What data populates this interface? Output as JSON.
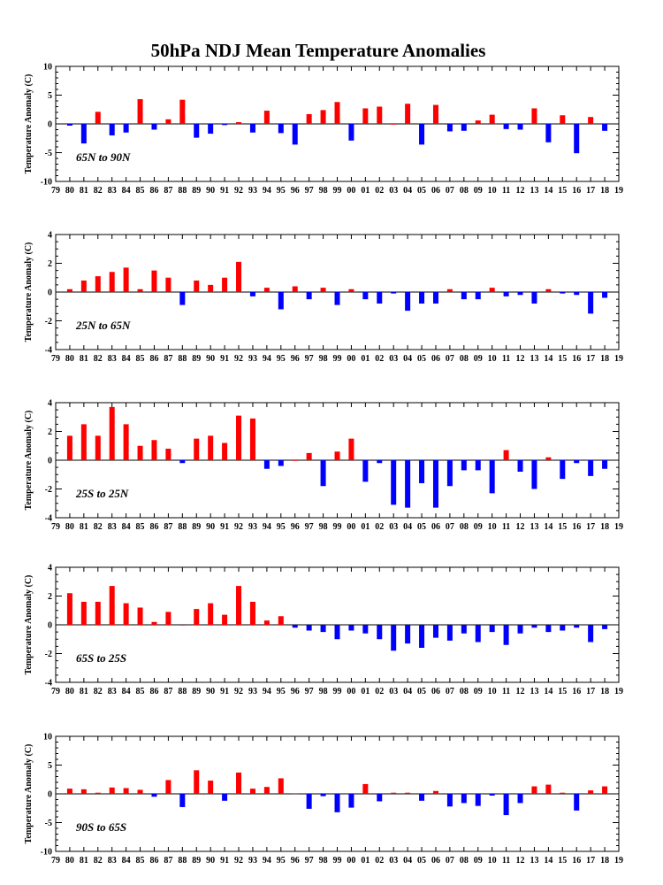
{
  "title": "50hPa NDJ Mean Temperature Anomalies",
  "colors": {
    "positive": "#ff0000",
    "negative": "#0000ff",
    "axis": "#000000"
  },
  "chart_data": [
    {
      "type": "bar",
      "region_label": "65N to 90N",
      "ylabel": "Temperature Anomaly (C)",
      "ylim": [
        -10,
        10
      ],
      "yticks": [
        -10,
        -5,
        0,
        5,
        10
      ],
      "xlim": [
        79,
        19
      ],
      "x_tick_labels": [
        "79",
        "80",
        "81",
        "82",
        "83",
        "84",
        "85",
        "86",
        "87",
        "88",
        "89",
        "90",
        "91",
        "92",
        "93",
        "94",
        "95",
        "96",
        "97",
        "98",
        "99",
        "00",
        "01",
        "02",
        "03",
        "04",
        "05",
        "06",
        "07",
        "08",
        "09",
        "10",
        "11",
        "12",
        "13",
        "14",
        "15",
        "16",
        "17",
        "18",
        "19"
      ],
      "categories": [
        "80",
        "81",
        "82",
        "83",
        "84",
        "85",
        "86",
        "87",
        "88",
        "89",
        "90",
        "91",
        "92",
        "93",
        "94",
        "95",
        "96",
        "97",
        "98",
        "99",
        "00",
        "01",
        "02",
        "03",
        "04",
        "05",
        "06",
        "07",
        "08",
        "09",
        "10",
        "11",
        "12",
        "13",
        "14",
        "15",
        "16",
        "17",
        "18"
      ],
      "values": [
        -0.3,
        -3.4,
        2.1,
        -2.0,
        -1.5,
        4.3,
        -1.0,
        0.8,
        4.2,
        -2.4,
        -1.7,
        -0.2,
        0.3,
        -1.5,
        2.3,
        -1.6,
        -3.6,
        1.7,
        2.4,
        3.8,
        -2.9,
        2.7,
        3.0,
        0.0,
        3.5,
        -3.6,
        3.3,
        -1.3,
        -1.2,
        0.6,
        1.6,
        -0.9,
        -1.0,
        2.7,
        -3.2,
        1.5,
        -5.1,
        1.2,
        -1.2
      ]
    },
    {
      "type": "bar",
      "region_label": "25N to 65N",
      "ylabel": "Temperature Anomaly (C)",
      "ylim": [
        -4,
        4
      ],
      "yticks": [
        -4,
        -2,
        0,
        2,
        4
      ],
      "xlim": [
        79,
        19
      ],
      "x_tick_labels": [
        "79",
        "80",
        "81",
        "82",
        "83",
        "84",
        "85",
        "86",
        "87",
        "88",
        "89",
        "90",
        "91",
        "92",
        "93",
        "94",
        "95",
        "96",
        "97",
        "98",
        "99",
        "00",
        "01",
        "02",
        "03",
        "04",
        "05",
        "06",
        "07",
        "08",
        "09",
        "10",
        "11",
        "12",
        "13",
        "14",
        "15",
        "16",
        "17",
        "18",
        "19"
      ],
      "categories": [
        "80",
        "81",
        "82",
        "83",
        "84",
        "85",
        "86",
        "87",
        "88",
        "89",
        "90",
        "91",
        "92",
        "93",
        "94",
        "95",
        "96",
        "97",
        "98",
        "99",
        "00",
        "01",
        "02",
        "03",
        "04",
        "05",
        "06",
        "07",
        "08",
        "09",
        "10",
        "11",
        "12",
        "13",
        "14",
        "15",
        "16",
        "17",
        "18"
      ],
      "values": [
        0.2,
        0.8,
        1.1,
        1.4,
        1.7,
        0.2,
        1.5,
        1.0,
        -0.9,
        0.8,
        0.5,
        1.0,
        2.1,
        -0.3,
        0.3,
        -1.2,
        0.4,
        -0.5,
        0.3,
        -0.9,
        0.2,
        -0.5,
        -0.8,
        -0.1,
        -1.3,
        -0.8,
        -0.8,
        0.2,
        -0.5,
        -0.5,
        0.3,
        -0.3,
        -0.2,
        -0.8,
        0.2,
        -0.1,
        -0.2,
        -1.5,
        -0.4
      ]
    },
    {
      "type": "bar",
      "region_label": "25S to 25N",
      "ylabel": "Temperature Anomaly (C)",
      "ylim": [
        -4,
        4
      ],
      "yticks": [
        -4,
        -2,
        0,
        2,
        4
      ],
      "xlim": [
        79,
        19
      ],
      "x_tick_labels": [
        "79",
        "80",
        "81",
        "82",
        "83",
        "84",
        "85",
        "86",
        "87",
        "88",
        "89",
        "90",
        "91",
        "92",
        "93",
        "94",
        "95",
        "96",
        "97",
        "98",
        "99",
        "00",
        "01",
        "02",
        "03",
        "04",
        "05",
        "06",
        "07",
        "08",
        "09",
        "10",
        "11",
        "12",
        "13",
        "14",
        "15",
        "16",
        "17",
        "18",
        "19"
      ],
      "categories": [
        "80",
        "81",
        "82",
        "83",
        "84",
        "85",
        "86",
        "87",
        "88",
        "89",
        "90",
        "91",
        "92",
        "93",
        "94",
        "95",
        "96",
        "97",
        "98",
        "99",
        "00",
        "01",
        "02",
        "03",
        "04",
        "05",
        "06",
        "07",
        "08",
        "09",
        "10",
        "11",
        "12",
        "13",
        "14",
        "15",
        "16",
        "17",
        "18"
      ],
      "values": [
        1.7,
        2.5,
        1.7,
        3.7,
        2.5,
        1.0,
        1.4,
        0.8,
        -0.2,
        1.5,
        1.7,
        1.2,
        3.1,
        2.9,
        -0.6,
        -0.4,
        0.0,
        0.5,
        -1.8,
        0.6,
        1.5,
        -1.5,
        -0.2,
        -3.1,
        -3.3,
        -1.6,
        -3.3,
        -1.8,
        -0.7,
        -0.7,
        -2.3,
        0.7,
        -0.8,
        -2.0,
        0.2,
        -1.3,
        -0.2,
        -1.1,
        -0.6
      ]
    },
    {
      "type": "bar",
      "region_label": "65S to 25S",
      "ylabel": "Temperature Anomaly (C)",
      "ylim": [
        -4,
        4
      ],
      "yticks": [
        -4,
        -2,
        0,
        2,
        4
      ],
      "xlim": [
        79,
        19
      ],
      "x_tick_labels": [
        "79",
        "80",
        "81",
        "82",
        "83",
        "84",
        "85",
        "86",
        "87",
        "88",
        "89",
        "90",
        "91",
        "92",
        "93",
        "94",
        "95",
        "96",
        "97",
        "98",
        "99",
        "00",
        "01",
        "02",
        "03",
        "04",
        "05",
        "06",
        "07",
        "08",
        "09",
        "10",
        "11",
        "12",
        "13",
        "14",
        "15",
        "16",
        "17",
        "18",
        "19"
      ],
      "categories": [
        "80",
        "81",
        "82",
        "83",
        "84",
        "85",
        "86",
        "87",
        "88",
        "89",
        "90",
        "91",
        "92",
        "93",
        "94",
        "95",
        "96",
        "97",
        "98",
        "99",
        "00",
        "01",
        "02",
        "03",
        "04",
        "05",
        "06",
        "07",
        "08",
        "09",
        "10",
        "11",
        "12",
        "13",
        "14",
        "15",
        "16",
        "17",
        "18"
      ],
      "values": [
        2.2,
        1.6,
        1.6,
        2.7,
        1.5,
        1.2,
        0.2,
        0.9,
        0.0,
        1.1,
        1.5,
        0.7,
        2.7,
        1.6,
        0.3,
        0.6,
        -0.2,
        -0.4,
        -0.5,
        -1.0,
        -0.4,
        -0.6,
        -1.0,
        -1.8,
        -1.3,
        -1.6,
        -0.9,
        -1.1,
        -0.6,
        -1.2,
        -0.5,
        -1.4,
        -0.6,
        -0.2,
        -0.5,
        -0.4,
        -0.2,
        -1.2,
        -0.3
      ]
    },
    {
      "type": "bar",
      "region_label": "90S to 65S",
      "ylabel": "Temperature Anomaly (C)",
      "ylim": [
        -10,
        10
      ],
      "yticks": [
        -10,
        -5,
        0,
        5,
        10
      ],
      "xlim": [
        79,
        19
      ],
      "x_tick_labels": [
        "79",
        "80",
        "81",
        "82",
        "83",
        "84",
        "85",
        "86",
        "87",
        "88",
        "89",
        "90",
        "91",
        "92",
        "93",
        "94",
        "95",
        "96",
        "97",
        "98",
        "99",
        "00",
        "01",
        "02",
        "03",
        "04",
        "05",
        "06",
        "07",
        "08",
        "09",
        "10",
        "11",
        "12",
        "13",
        "14",
        "15",
        "16",
        "17",
        "18",
        "19"
      ],
      "categories": [
        "80",
        "81",
        "82",
        "83",
        "84",
        "85",
        "86",
        "87",
        "88",
        "89",
        "90",
        "91",
        "92",
        "93",
        "94",
        "95",
        "96",
        "97",
        "98",
        "99",
        "00",
        "01",
        "02",
        "03",
        "04",
        "05",
        "06",
        "07",
        "08",
        "09",
        "10",
        "11",
        "12",
        "13",
        "14",
        "15",
        "16",
        "17",
        "18"
      ],
      "values": [
        0.9,
        0.8,
        0.2,
        1.1,
        1.0,
        0.7,
        -0.5,
        2.4,
        -2.3,
        4.1,
        2.3,
        -1.2,
        3.7,
        0.9,
        1.2,
        2.7,
        0.1,
        -2.6,
        -0.4,
        -3.2,
        -2.4,
        1.7,
        -1.3,
        0.2,
        0.2,
        -1.2,
        0.5,
        -2.2,
        -1.6,
        -2.1,
        -0.3,
        -3.7,
        -1.6,
        1.3,
        1.6,
        0.2,
        -2.9,
        0.6,
        1.3
      ]
    }
  ]
}
